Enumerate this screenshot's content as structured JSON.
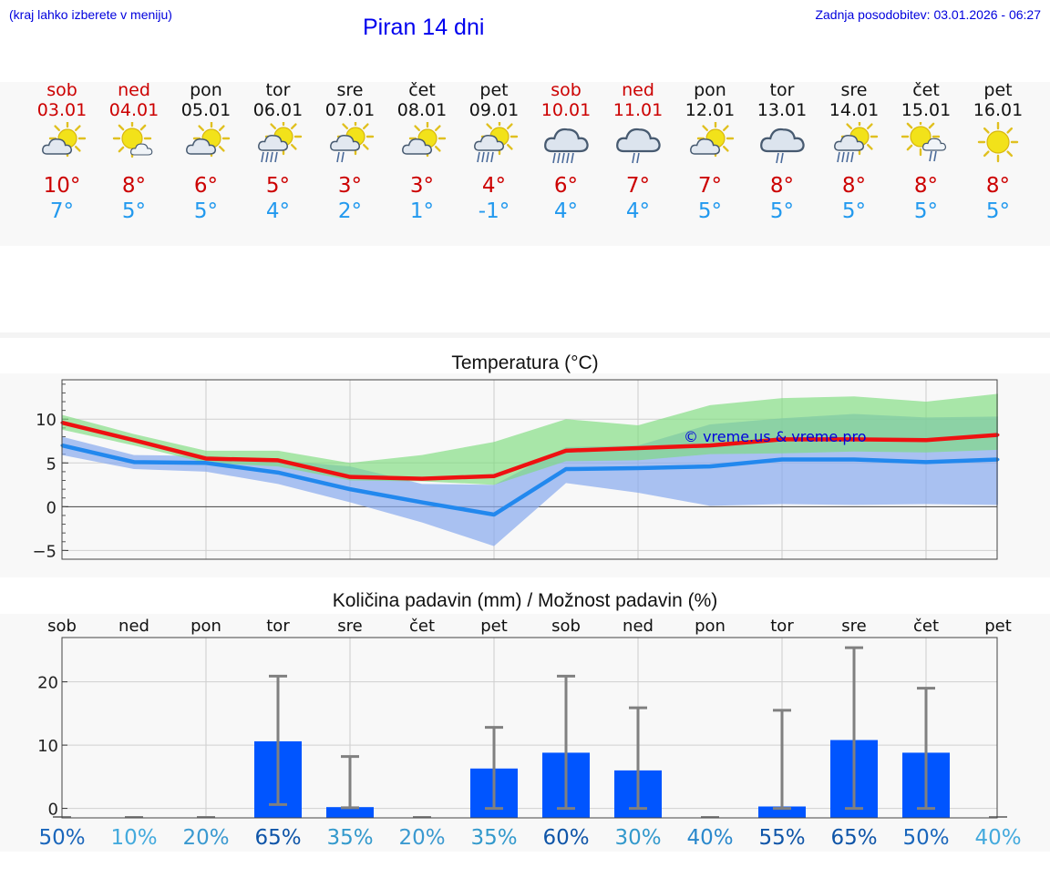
{
  "header": {
    "hint": "(kraj lahko izberete v meniju)",
    "title": "Piran 14 dni",
    "updated": "Zadnja posodobitev: 03.01.2026 - 06:27"
  },
  "forecast": [
    {
      "day": "sob",
      "date": "03.01",
      "weekend": true,
      "icon": "partly-cloudy",
      "tmax": "10°",
      "tmin": "7°"
    },
    {
      "day": "ned",
      "date": "04.01",
      "weekend": true,
      "icon": "sun-small-cloud",
      "tmax": "8°",
      "tmin": "5°"
    },
    {
      "day": "pon",
      "date": "05.01",
      "weekend": false,
      "icon": "partly-cloudy",
      "tmax": "6°",
      "tmin": "5°"
    },
    {
      "day": "tor",
      "date": "06.01",
      "weekend": false,
      "icon": "sun-cloud-rain-heavy",
      "tmax": "5°",
      "tmin": "4°"
    },
    {
      "day": "sre",
      "date": "07.01",
      "weekend": false,
      "icon": "sun-cloud-rain",
      "tmax": "3°",
      "tmin": "2°"
    },
    {
      "day": "čet",
      "date": "08.01",
      "weekend": false,
      "icon": "partly-cloudy",
      "tmax": "3°",
      "tmin": "1°"
    },
    {
      "day": "pet",
      "date": "09.01",
      "weekend": false,
      "icon": "sun-cloud-rain-heavy",
      "tmax": "4°",
      "tmin": "-1°"
    },
    {
      "day": "sob",
      "date": "10.01",
      "weekend": true,
      "icon": "cloud-rain-heavy",
      "tmax": "6°",
      "tmin": "4°"
    },
    {
      "day": "ned",
      "date": "11.01",
      "weekend": true,
      "icon": "cloud-rain",
      "tmax": "7°",
      "tmin": "4°"
    },
    {
      "day": "pon",
      "date": "12.01",
      "weekend": false,
      "icon": "partly-cloudy",
      "tmax": "7°",
      "tmin": "5°"
    },
    {
      "day": "tor",
      "date": "13.01",
      "weekend": false,
      "icon": "cloud-rain",
      "tmax": "8°",
      "tmin": "5°"
    },
    {
      "day": "sre",
      "date": "14.01",
      "weekend": false,
      "icon": "sun-cloud-rain-heavy",
      "tmax": "8°",
      "tmin": "5°"
    },
    {
      "day": "čet",
      "date": "15.01",
      "weekend": false,
      "icon": "sun-small-cloud-rain",
      "tmax": "8°",
      "tmin": "5°"
    },
    {
      "day": "pet",
      "date": "16.01",
      "weekend": false,
      "icon": "sun",
      "tmax": "8°",
      "tmin": "5°"
    }
  ],
  "colors": {
    "max_line": "#ee1111",
    "min_line": "#2288ee",
    "max_band": "#7ddc7d",
    "min_band": "#88aaee",
    "precip_bar": "#0055ff",
    "error_bar": "#808080",
    "weekend": "#cc0000",
    "tmin_text": "#2299ee"
  },
  "chart_data": [
    {
      "type": "line",
      "title": "Temperatura (°C)",
      "watermark": "© vreme.us & vreme.pro",
      "ylim": [
        -6,
        14.5
      ],
      "yticks": [
        -5,
        0,
        5,
        10
      ],
      "ytick_labels": [
        "−5",
        "0",
        "5",
        "10"
      ],
      "series": [
        {
          "name": "max",
          "values": [
            9.6,
            7.6,
            5.5,
            5.3,
            3.4,
            3.2,
            3.5,
            6.4,
            6.7,
            7.0,
            7.7,
            7.7,
            7.6,
            8.2
          ]
        },
        {
          "name": "min",
          "values": [
            7.0,
            5.1,
            5.0,
            3.9,
            2.0,
            0.5,
            -0.9,
            4.3,
            4.4,
            4.6,
            5.4,
            5.4,
            5.1,
            5.4
          ]
        }
      ],
      "bands": [
        {
          "name": "max spread",
          "lower": [
            8.8,
            7.0,
            5.0,
            4.6,
            3.0,
            2.9,
            2.5,
            5.2,
            5.3,
            6.0,
            6.1,
            6.3,
            6.2,
            6.5
          ],
          "upper": [
            10.5,
            8.3,
            6.4,
            6.4,
            5.0,
            5.9,
            7.4,
            10.0,
            9.3,
            11.6,
            12.4,
            12.6,
            12.0,
            12.9
          ]
        },
        {
          "name": "min spread",
          "lower": [
            5.9,
            4.3,
            4.0,
            2.6,
            0.5,
            -1.8,
            -4.5,
            2.7,
            1.6,
            0.1,
            0.3,
            0.2,
            0.3,
            0.2
          ],
          "upper": [
            8.0,
            5.9,
            5.8,
            5.3,
            4.6,
            2.6,
            2.5,
            6.8,
            7.0,
            9.4,
            10.1,
            10.6,
            10.2,
            10.3
          ]
        }
      ]
    },
    {
      "type": "bar",
      "title": "Količina padavin (mm) / Možnost padavin (%)",
      "categories": [
        "sob",
        "ned",
        "pon",
        "tor",
        "sre",
        "čet",
        "pet",
        "sob",
        "ned",
        "pon",
        "tor",
        "sre",
        "čet",
        "pet"
      ],
      "ylim": [
        -1.5,
        27
      ],
      "yticks": [
        0,
        10,
        20
      ],
      "values": [
        0,
        0,
        0,
        10.6,
        0.2,
        0,
        6.3,
        8.8,
        6.0,
        0,
        0.3,
        10.8,
        8.8,
        0
      ],
      "error_low": [
        0,
        0,
        0,
        0.6,
        0.1,
        0,
        0,
        0,
        0,
        0,
        0,
        0,
        0,
        0
      ],
      "error_high": [
        0,
        0,
        0,
        20.9,
        8.2,
        0,
        12.8,
        20.9,
        15.9,
        0,
        15.5,
        25.4,
        19.0,
        0
      ],
      "probability": [
        "50%",
        "10%",
        "20%",
        "65%",
        "35%",
        "20%",
        "35%",
        "60%",
        "30%",
        "40%",
        "55%",
        "65%",
        "50%",
        "40%"
      ],
      "probability_colors": [
        "#1a66bb",
        "#44aadd",
        "#3a99d0",
        "#0f55a8",
        "#3399cc",
        "#3a99d0",
        "#3399cc",
        "#0f55a8",
        "#3399cc",
        "#2a88cc",
        "#0f55a8",
        "#0f55a8",
        "#1a66bb",
        "#44aadd"
      ]
    }
  ]
}
